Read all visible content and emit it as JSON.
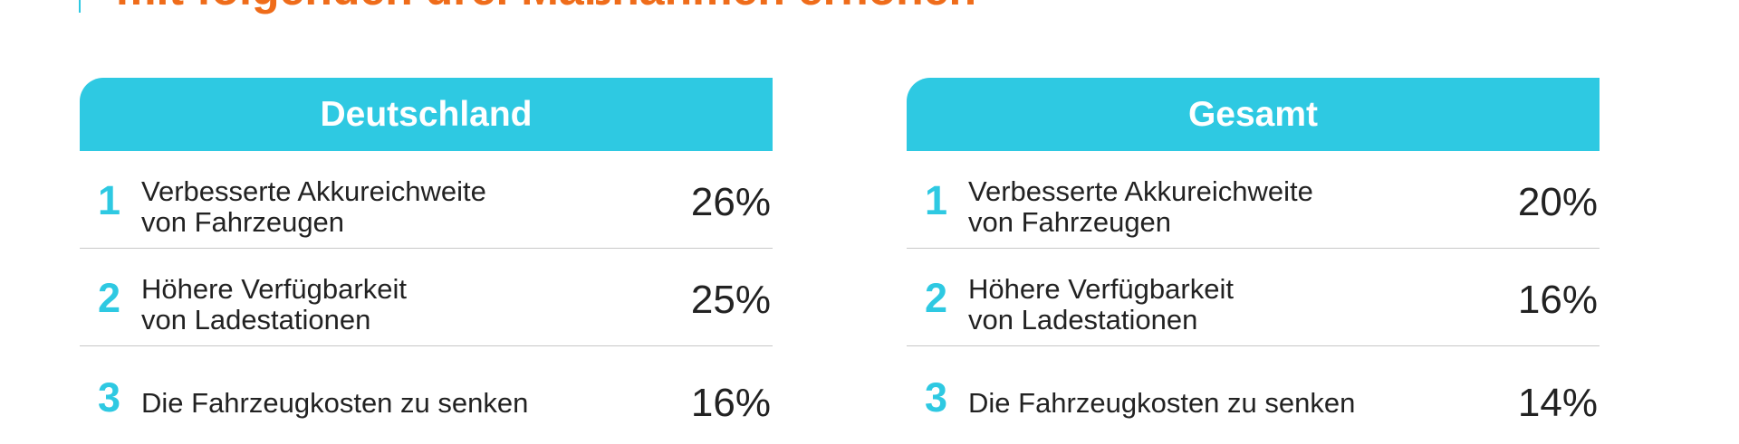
{
  "heading": {
    "text": "mit folgenden drei Maßnahmen erhöhen"
  },
  "panels": [
    {
      "title": "Deutschland",
      "rows": [
        {
          "rank": "1",
          "label": "Verbesserte Akkureichweite\nvon Fahrzeugen",
          "value": "26%"
        },
        {
          "rank": "2",
          "label": "Höhere Verfügbarkeit\nvon Ladestationen",
          "value": "25%"
        },
        {
          "rank": "3",
          "label": "Die Fahrzeugkosten zu senken",
          "value": "16%"
        }
      ]
    },
    {
      "title": "Gesamt",
      "rows": [
        {
          "rank": "1",
          "label": "Verbesserte Akkureichweite\nvon Fahrzeugen",
          "value": "20%"
        },
        {
          "rank": "2",
          "label": "Höhere Verfügbarkeit\nvon Ladestationen",
          "value": "16%"
        },
        {
          "rank": "3",
          "label": "Die Fahrzeugkosten zu senken",
          "value": "14%"
        }
      ]
    }
  ],
  "colors": {
    "accent": "#2ec9e2",
    "heading": "#ef6c1a",
    "text": "#222222",
    "divider": "#c8c8c8"
  }
}
